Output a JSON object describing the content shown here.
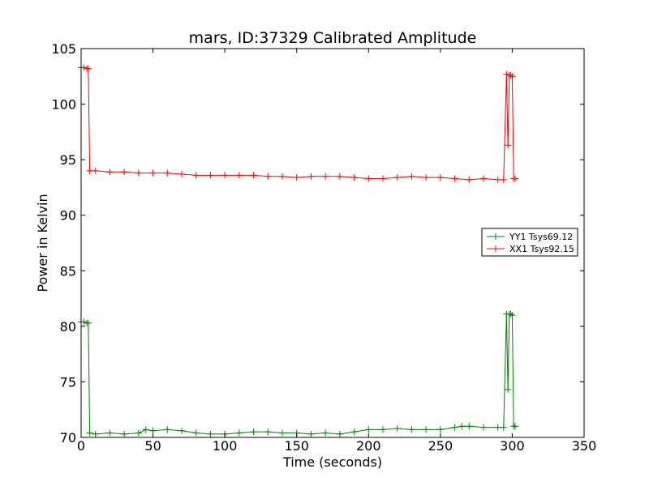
{
  "chart_data": {
    "type": "line",
    "title": "mars, ID:37329 Calibrated Amplitude",
    "xlabel": "Time (seconds)",
    "ylabel": "Power in Kelvin",
    "xlim": [
      0,
      350
    ],
    "ylim": [
      70,
      105
    ],
    "xticks": [
      "0",
      "50",
      "100",
      "150",
      "200",
      "250",
      "300",
      "350"
    ],
    "yticks": [
      "70",
      "75",
      "80",
      "85",
      "90",
      "95",
      "100",
      "105"
    ],
    "grid": false,
    "legend_position": "right",
    "series": [
      {
        "name": "YY1 Tsys69.12",
        "color": "#008000",
        "marker": "+",
        "x": [
          0,
          2,
          4,
          5,
          6,
          10,
          20,
          30,
          40,
          45,
          50,
          60,
          70,
          80,
          90,
          100,
          110,
          120,
          130,
          140,
          150,
          160,
          170,
          180,
          190,
          200,
          210,
          220,
          230,
          240,
          250,
          260,
          265,
          270,
          280,
          290,
          294,
          296,
          297,
          298,
          299,
          300,
          301,
          302
        ],
        "y": [
          80.4,
          80.4,
          80.3,
          80.3,
          70.4,
          70.3,
          70.4,
          70.3,
          70.4,
          70.7,
          70.6,
          70.7,
          70.6,
          70.4,
          70.3,
          70.3,
          70.4,
          70.5,
          70.5,
          70.4,
          70.4,
          70.3,
          70.4,
          70.3,
          70.5,
          70.7,
          70.7,
          70.8,
          70.7,
          70.7,
          70.7,
          70.9,
          71.0,
          71.0,
          70.9,
          70.9,
          70.9,
          81.1,
          74.3,
          81.1,
          81.1,
          81.0,
          71.0,
          71.0
        ]
      },
      {
        "name": "XX1 Tsys92.15",
        "color": "#ff0000",
        "marker": "+",
        "x": [
          0,
          2,
          4,
          5,
          6,
          10,
          20,
          30,
          40,
          50,
          60,
          70,
          80,
          90,
          100,
          110,
          120,
          130,
          140,
          150,
          160,
          170,
          180,
          190,
          200,
          210,
          220,
          230,
          240,
          250,
          260,
          270,
          280,
          290,
          294,
          296,
          297,
          298,
          299,
          300,
          301,
          302
        ],
        "y": [
          103.3,
          103.3,
          103.2,
          103.2,
          94.0,
          94.0,
          93.9,
          93.9,
          93.8,
          93.8,
          93.8,
          93.7,
          93.6,
          93.6,
          93.6,
          93.6,
          93.6,
          93.5,
          93.5,
          93.4,
          93.5,
          93.5,
          93.5,
          93.4,
          93.3,
          93.3,
          93.4,
          93.5,
          93.4,
          93.4,
          93.3,
          93.2,
          93.3,
          93.2,
          93.2,
          102.7,
          96.3,
          102.6,
          102.6,
          102.5,
          93.3,
          93.3
        ]
      }
    ]
  }
}
